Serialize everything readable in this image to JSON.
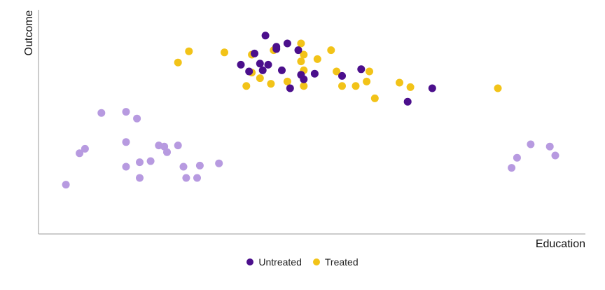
{
  "chart_data": {
    "type": "scatter",
    "xlabel": "Education",
    "ylabel": "Outcome",
    "xlim": [
      0,
      100
    ],
    "ylim": [
      0,
      100
    ],
    "grid": false,
    "legend_position": "bottom",
    "colors": {
      "untreated": "#4b0f8c",
      "treated": "#f2c318",
      "other": "#b79ae0"
    },
    "series": [
      {
        "name": "Untreated",
        "points": [
          [
            41.5,
            88.5
          ],
          [
            43.5,
            82.5
          ],
          [
            39.5,
            80.5
          ],
          [
            37,
            75.5
          ],
          [
            38.5,
            72.5
          ],
          [
            40.5,
            76
          ],
          [
            42,
            75.5
          ],
          [
            41,
            73
          ],
          [
            43.5,
            83.5
          ],
          [
            44.5,
            73
          ],
          [
            45.5,
            85
          ],
          [
            47.5,
            82
          ],
          [
            46,
            65
          ],
          [
            48.5,
            69
          ],
          [
            48,
            71
          ],
          [
            50.5,
            71.5
          ],
          [
            55.5,
            70.5
          ],
          [
            59,
            73.5
          ],
          [
            72,
            65
          ],
          [
            67.5,
            59
          ]
        ]
      },
      {
        "name": "Treated",
        "points": [
          [
            25.5,
            76.5
          ],
          [
            27.5,
            81.5
          ],
          [
            34,
            81
          ],
          [
            39,
            80
          ],
          [
            43,
            82
          ],
          [
            48,
            85
          ],
          [
            48.5,
            80
          ],
          [
            48,
            77
          ],
          [
            48.5,
            73
          ],
          [
            48.5,
            66
          ],
          [
            42.5,
            67
          ],
          [
            40.5,
            69.5
          ],
          [
            39,
            72
          ],
          [
            38,
            66
          ],
          [
            45.5,
            68
          ],
          [
            51,
            78
          ],
          [
            53.5,
            82
          ],
          [
            54.5,
            72.5
          ],
          [
            55.5,
            66
          ],
          [
            58,
            66
          ],
          [
            60,
            68
          ],
          [
            60.5,
            72.5
          ],
          [
            61.5,
            60.5
          ],
          [
            66,
            67.5
          ],
          [
            68,
            65.5
          ],
          [
            84,
            65
          ]
        ]
      },
      {
        "points": [
          [
            5,
            22
          ],
          [
            7.5,
            36
          ],
          [
            8.5,
            38
          ],
          [
            11.5,
            54
          ],
          [
            16,
            54.5
          ],
          [
            18,
            51.5
          ],
          [
            16,
            41
          ],
          [
            18.5,
            32
          ],
          [
            20.5,
            32.5
          ],
          [
            16,
            30
          ],
          [
            18.5,
            25
          ],
          [
            22,
            39.5
          ],
          [
            23,
            39
          ],
          [
            23.5,
            36.5
          ],
          [
            25.5,
            39.5
          ],
          [
            26.5,
            30
          ],
          [
            27,
            25
          ],
          [
            29,
            25
          ],
          [
            29.5,
            30.5
          ],
          [
            33,
            31.5
          ],
          [
            86.5,
            29.5
          ],
          [
            87.5,
            34
          ],
          [
            90,
            40
          ],
          [
            93.5,
            39
          ],
          [
            94.5,
            35
          ]
        ]
      }
    ]
  }
}
